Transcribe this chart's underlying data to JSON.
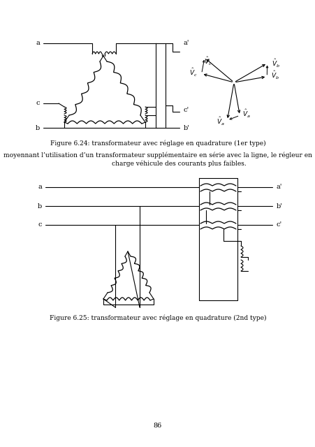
{
  "fig_width": 4.52,
  "fig_height": 6.4,
  "dpi": 100,
  "bg_color": "#ffffff",
  "text_color": "#000000",
  "fig_caption1": "Figure 6.24: transformateur avec réglage en quadrature (1er type)",
  "fig_caption2": "Figure 6.25: transformateur avec réglage en quadrature (2nd type)",
  "body_line1": "moyennant l’utilisation d’un transformateur supplémentaire en série avec la ligne, le régleur en",
  "body_line2": "charge véhicule des courants plus faibles.",
  "page_number": "86"
}
